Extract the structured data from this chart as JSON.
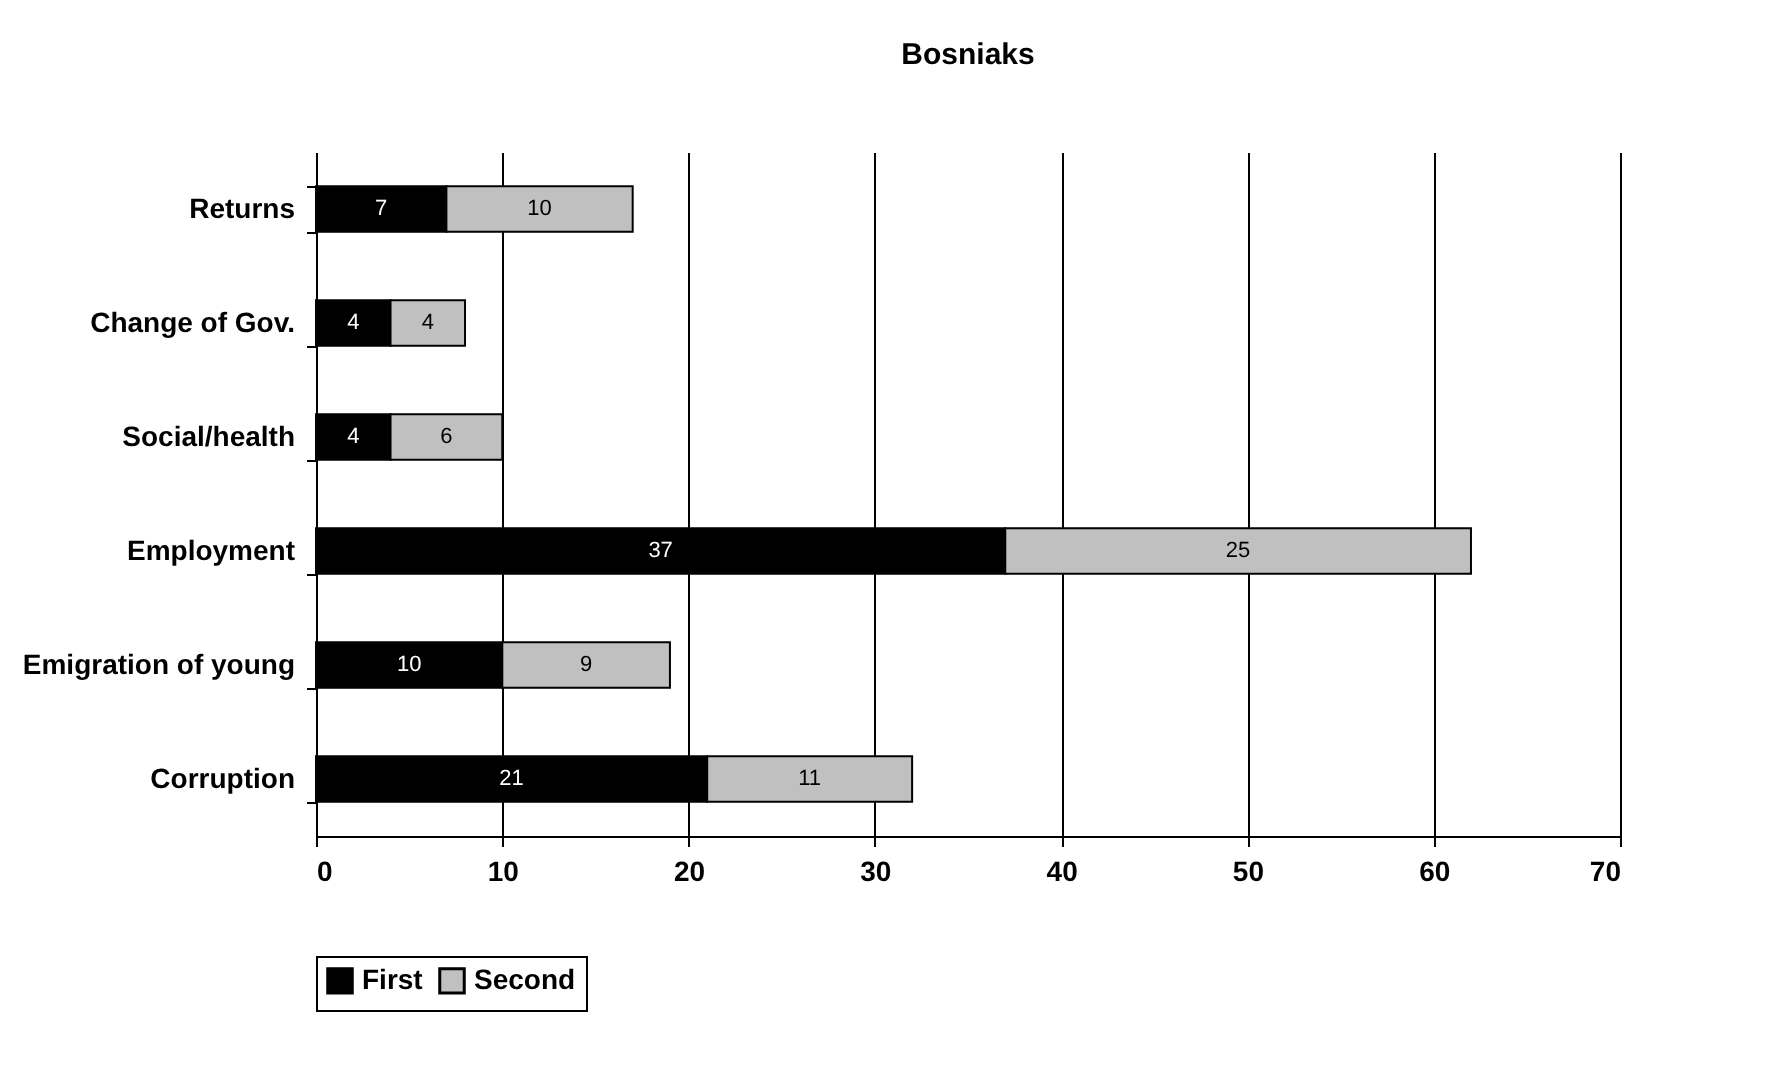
{
  "chart_data": {
    "type": "bar",
    "orientation": "horizontal",
    "stacked": true,
    "title": "Bosniaks",
    "categories": [
      "Returns",
      "Change of Gov.",
      "Social/health",
      "Employment",
      "Emigration of young",
      "Corruption"
    ],
    "series": [
      {
        "name": "First",
        "color": "#000000",
        "values": [
          7,
          4,
          4,
          37,
          10,
          21
        ]
      },
      {
        "name": "Second",
        "color": "#c0c0c0",
        "values": [
          10,
          4,
          6,
          25,
          9,
          11
        ]
      }
    ],
    "xlim": [
      0,
      70
    ],
    "xticks": [
      0,
      10,
      20,
      30,
      40,
      50,
      60,
      70
    ],
    "grid": "x",
    "legend": "bottom",
    "data_labels": true
  }
}
